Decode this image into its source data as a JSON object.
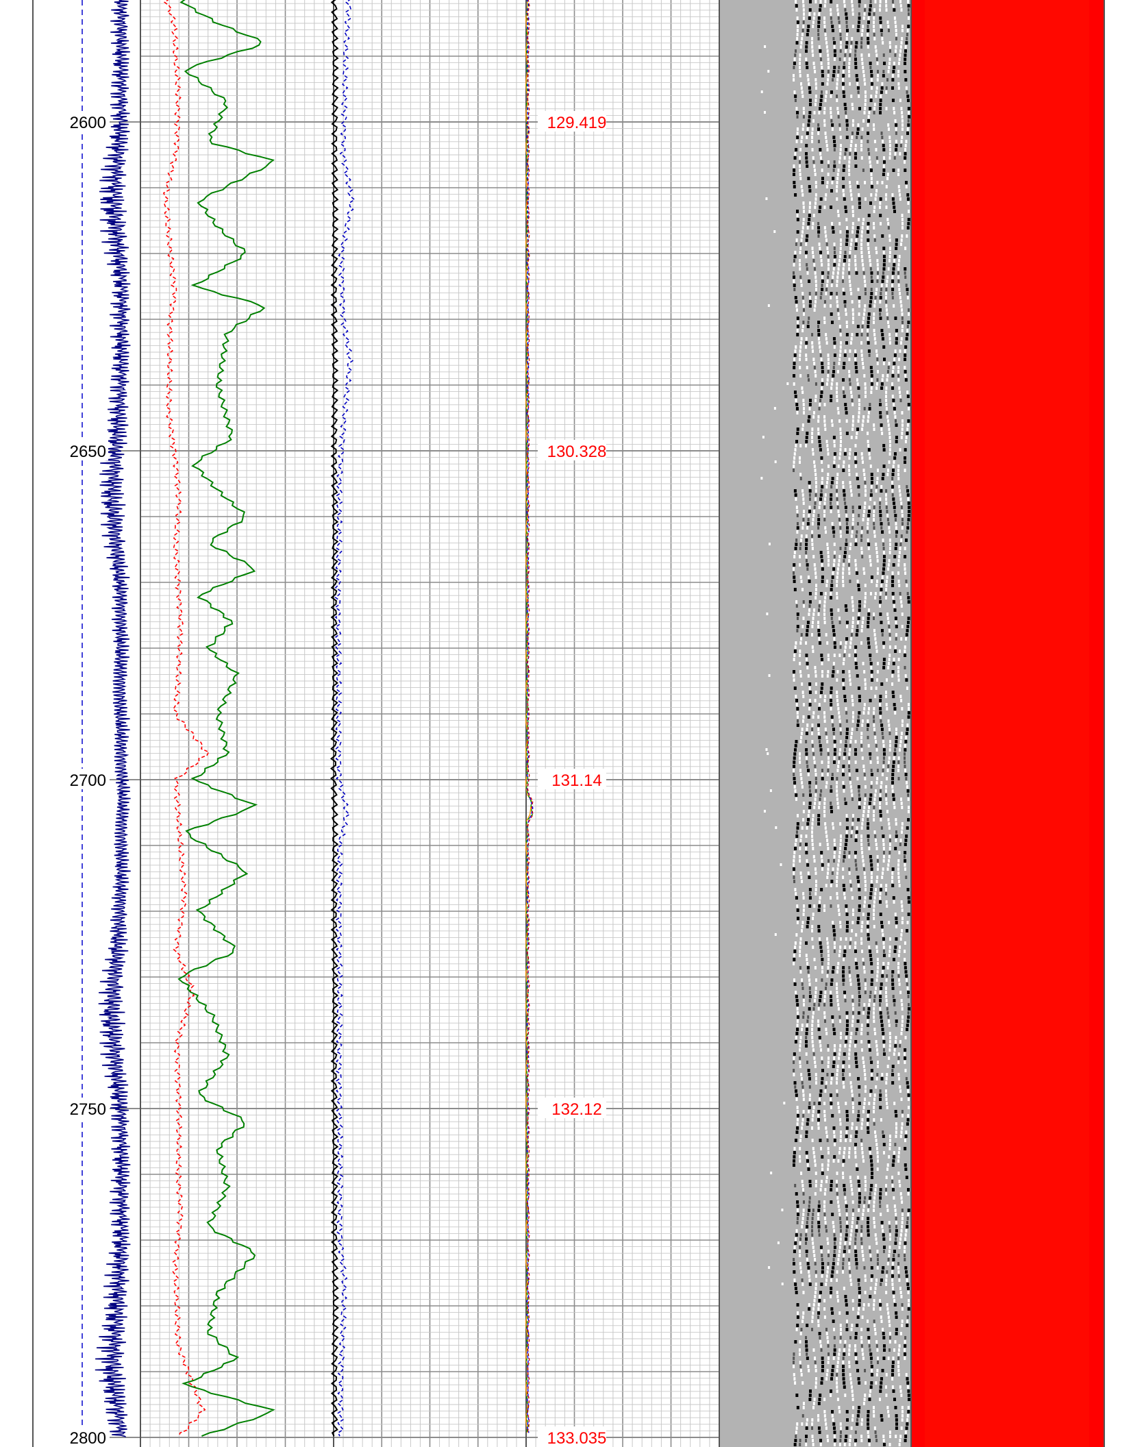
{
  "chart_data": {
    "type": "line",
    "title": "",
    "depth_range": [
      2581.3,
      2800
    ],
    "depth_ticks": [
      {
        "depth": 2600,
        "label": "2600"
      },
      {
        "depth": 2650,
        "label": "2650"
      },
      {
        "depth": 2700,
        "label": "2700"
      },
      {
        "depth": 2750,
        "label": "2750"
      },
      {
        "depth": 2800,
        "label": "2800"
      }
    ],
    "travel_time_labels": [
      {
        "depth": 2600,
        "label": "129.419"
      },
      {
        "depth": 2650,
        "label": "130.328"
      },
      {
        "depth": 2700,
        "label": "131.14"
      },
      {
        "depth": 2750,
        "label": "132.12"
      },
      {
        "depth": 2800,
        "label": "133.035"
      }
    ],
    "series": [
      {
        "type": "line",
        "color": "#000080",
        "dash": "solid",
        "track": 1,
        "kind": "amplitude-trace",
        "profile": [
          [
            2583,
            0.6
          ],
          [
            2600,
            0.62
          ],
          [
            2612,
            0.9
          ],
          [
            2625,
            0.6
          ],
          [
            2640,
            0.62
          ],
          [
            2657,
            0.9
          ],
          [
            2672,
            0.6
          ],
          [
            2690,
            0.62
          ],
          [
            2702,
            0.55
          ],
          [
            2720,
            0.62
          ],
          [
            2736,
            0.92
          ],
          [
            2752,
            0.6
          ],
          [
            2770,
            0.62
          ],
          [
            2790,
            0.92
          ],
          [
            2800,
            0.6
          ]
        ]
      },
      {
        "type": "line",
        "color": "#ff0000",
        "dash": "dashed",
        "track": 2,
        "profile": [
          [
            2582,
            0.56
          ],
          [
            2585,
            0.7
          ],
          [
            2590,
            0.72
          ],
          [
            2595,
            0.78
          ],
          [
            2604,
            0.76
          ],
          [
            2611,
            0.52
          ],
          [
            2614,
            0.54
          ],
          [
            2620,
            0.62
          ],
          [
            2626,
            0.72
          ],
          [
            2630,
            0.62
          ],
          [
            2644,
            0.58
          ],
          [
            2652,
            0.74
          ],
          [
            2658,
            0.8
          ],
          [
            2664,
            0.72
          ],
          [
            2670,
            0.78
          ],
          [
            2676,
            0.84
          ],
          [
            2684,
            0.78
          ],
          [
            2690,
            0.72
          ],
          [
            2696,
            1.4
          ],
          [
            2700,
            0.74
          ],
          [
            2708,
            0.8
          ],
          [
            2718,
            0.92
          ],
          [
            2726,
            0.74
          ],
          [
            2732,
            1.08
          ],
          [
            2740,
            0.76
          ],
          [
            2750,
            0.8
          ],
          [
            2760,
            0.78
          ],
          [
            2766,
            0.84
          ],
          [
            2774,
            0.72
          ],
          [
            2786,
            0.78
          ],
          [
            2796,
            1.3
          ],
          [
            2800,
            0.78
          ]
        ]
      },
      {
        "type": "line",
        "color": "#008000",
        "dash": "solid",
        "track": 2,
        "profile": [
          [
            2582,
            0.9
          ],
          [
            2585,
            1.6
          ],
          [
            2588,
            2.6
          ],
          [
            2592,
            0.9
          ],
          [
            2597,
            1.8
          ],
          [
            2603,
            1.4
          ],
          [
            2606,
            2.8
          ],
          [
            2612,
            1.2
          ],
          [
            2616,
            1.6
          ],
          [
            2620,
            2.2
          ],
          [
            2625,
            1.1
          ],
          [
            2628,
            2.6
          ],
          [
            2632,
            1.8
          ],
          [
            2640,
            1.6
          ],
          [
            2648,
            1.9
          ],
          [
            2652,
            1.1
          ],
          [
            2656,
            1.6
          ],
          [
            2660,
            2.2
          ],
          [
            2664,
            1.4
          ],
          [
            2668,
            2.4
          ],
          [
            2672,
            1.2
          ],
          [
            2676,
            1.9
          ],
          [
            2680,
            1.4
          ],
          [
            2684,
            2.0
          ],
          [
            2690,
            1.6
          ],
          [
            2696,
            1.8
          ],
          [
            2700,
            1.1
          ],
          [
            2704,
            2.4
          ],
          [
            2708,
            0.9
          ],
          [
            2714,
            2.2
          ],
          [
            2720,
            1.2
          ],
          [
            2726,
            2.0
          ],
          [
            2730,
            0.8
          ],
          [
            2736,
            1.5
          ],
          [
            2742,
            1.8
          ],
          [
            2748,
            1.2
          ],
          [
            2752,
            2.2
          ],
          [
            2756,
            1.6
          ],
          [
            2762,
            1.8
          ],
          [
            2768,
            1.4
          ],
          [
            2772,
            2.4
          ],
          [
            2778,
            1.6
          ],
          [
            2784,
            1.4
          ],
          [
            2788,
            2.0
          ],
          [
            2792,
            0.9
          ],
          [
            2796,
            2.8
          ],
          [
            2800,
            1.2
          ]
        ]
      },
      {
        "type": "line",
        "color": "#000000",
        "dash": "solid",
        "track": 3,
        "profile": [
          [
            2582,
            0.02
          ],
          [
            2600,
            0.03
          ],
          [
            2620,
            0.02
          ],
          [
            2640,
            0.02
          ],
          [
            2660,
            0.02
          ],
          [
            2680,
            0.02
          ],
          [
            2700,
            0.01
          ],
          [
            2705,
            0.02
          ],
          [
            2720,
            0.02
          ],
          [
            2740,
            0.02
          ],
          [
            2760,
            0.02
          ],
          [
            2780,
            0.03
          ],
          [
            2800,
            0.02
          ]
        ]
      },
      {
        "type": "line",
        "color": "#0000c0",
        "dash": "dashed",
        "track": 3,
        "profile": [
          [
            2582,
            0.32
          ],
          [
            2590,
            0.24
          ],
          [
            2600,
            0.22
          ],
          [
            2605,
            0.2
          ],
          [
            2612,
            0.38
          ],
          [
            2620,
            0.16
          ],
          [
            2630,
            0.2
          ],
          [
            2636,
            0.34
          ],
          [
            2645,
            0.22
          ],
          [
            2655,
            0.12
          ],
          [
            2670,
            0.1
          ],
          [
            2690,
            0.1
          ],
          [
            2700,
            0.12
          ],
          [
            2705,
            0.28
          ],
          [
            2710,
            0.12
          ],
          [
            2730,
            0.12
          ],
          [
            2750,
            0.12
          ],
          [
            2770,
            0.14
          ],
          [
            2776,
            0.22
          ],
          [
            2790,
            0.16
          ],
          [
            2800,
            0.14
          ]
        ]
      },
      {
        "type": "line",
        "color": "#ff9900",
        "dash": "solid",
        "track": 4,
        "note": "near-zero"
      },
      {
        "type": "line",
        "color": "#009900",
        "dash": "dashed",
        "track": 4,
        "note": "near-zero"
      },
      {
        "type": "line",
        "color": "#0000ff",
        "dash": "dashed",
        "track": 4,
        "note": "near-zero"
      },
      {
        "type": "line",
        "color": "#cc0000",
        "dash": "dashed",
        "track": 4,
        "note": "near-zero"
      }
    ],
    "tracks": [
      {
        "id": "depth",
        "kind": "depth",
        "grid": false
      },
      {
        "id": "track-2",
        "kind": "curve",
        "grid": true
      },
      {
        "id": "track-3",
        "kind": "curve",
        "grid": true
      },
      {
        "id": "track-4",
        "kind": "curve",
        "grid": true
      },
      {
        "id": "image-track",
        "kind": "image",
        "colors": [
          "#b3b3b3",
          "#000000",
          "#ffffff"
        ]
      },
      {
        "id": "color-track",
        "kind": "color",
        "colors": [
          "#ff0000"
        ]
      }
    ],
    "grid": true
  },
  "colors": {
    "depth_label": "#000000",
    "travel_time_label": "#ff0000",
    "grid_major": "#8c8c8c",
    "grid_minor": "#c8c8c8",
    "image_background": "#b3b3b3",
    "color_track": "#ff0000"
  }
}
